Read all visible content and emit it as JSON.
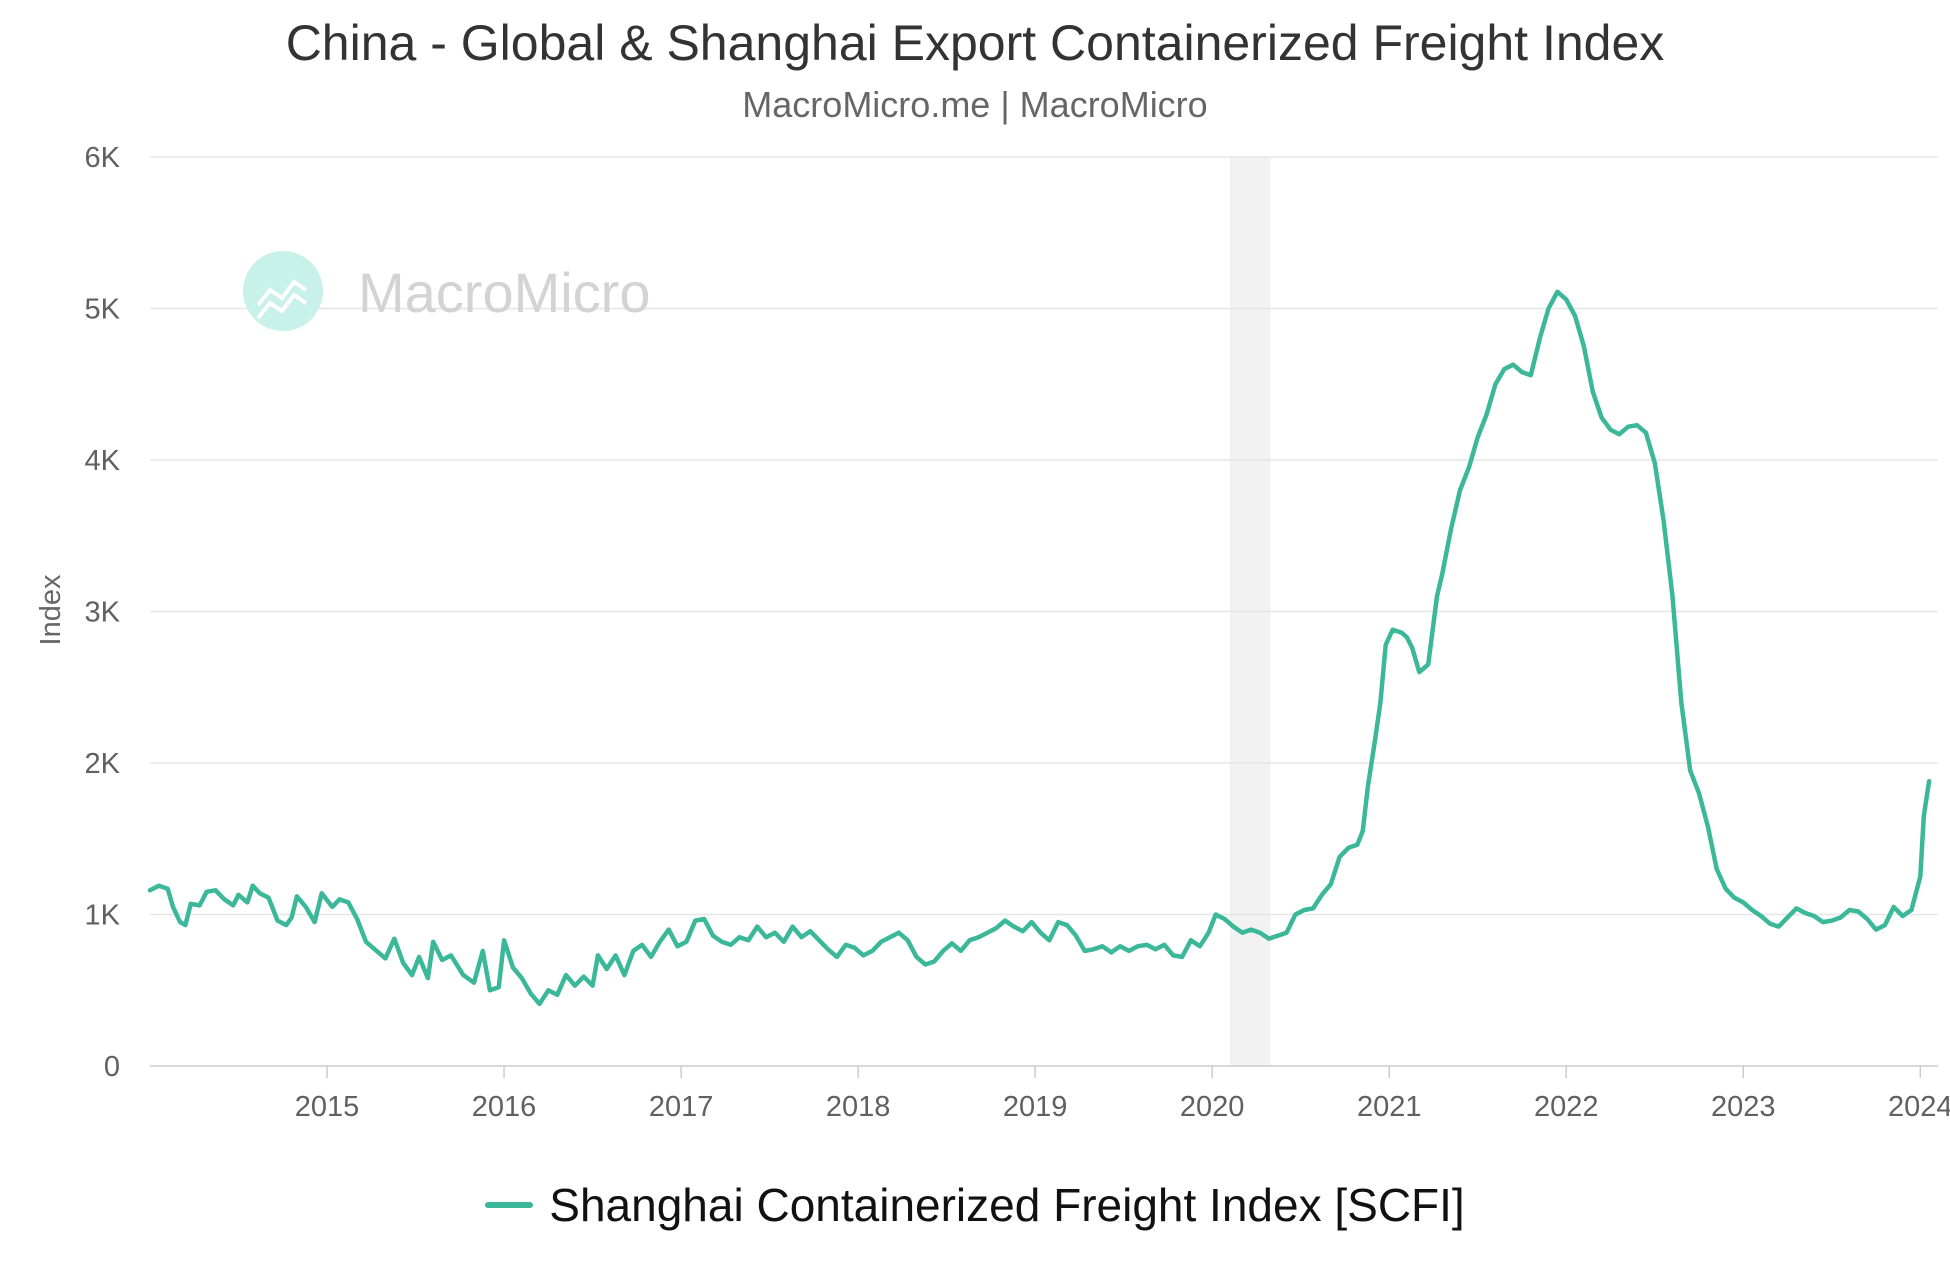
{
  "header": {
    "title": "China - Global & Shanghai Export Containerized Freight Index",
    "subtitle": "MacroMicro.me | MacroMicro"
  },
  "watermark": {
    "text": "MacroMicro",
    "icon": "chart-logo-icon",
    "color": "#c8f1e9"
  },
  "colors": {
    "series": "#3bb89a",
    "grid": "#e6e6e6",
    "shade": "#f2f2f2",
    "axis": "#cccccc"
  },
  "legend": {
    "label": "Shanghai Containerized Freight Index [SCFI]"
  },
  "chart_data": {
    "type": "line",
    "ylabel": "Index",
    "xlabel": "",
    "ylim": [
      0,
      6000
    ],
    "xlim": [
      2014.0,
      2024.1
    ],
    "y_ticks": [
      0,
      1000,
      2000,
      3000,
      4000,
      5000,
      6000
    ],
    "y_tick_labels": [
      "0",
      "1K",
      "2K",
      "3K",
      "4K",
      "5K",
      "6K"
    ],
    "x_ticks": [
      2015,
      2016,
      2017,
      2018,
      2019,
      2020,
      2021,
      2022,
      2023,
      2024
    ],
    "x_tick_labels": [
      "2015",
      "2016",
      "2017",
      "2018",
      "2019",
      "2020",
      "2021",
      "2022",
      "2023",
      "2024"
    ],
    "grid": "horizontal",
    "legend_position": "bottom-center",
    "shaded_periods": [
      [
        2020.1,
        2020.33
      ]
    ],
    "series": [
      {
        "name": "Shanghai Containerized Freight Index [SCFI]",
        "color": "#3bb89a",
        "points": [
          [
            2014.0,
            1160
          ],
          [
            2014.05,
            1190
          ],
          [
            2014.1,
            1170
          ],
          [
            2014.13,
            1050
          ],
          [
            2014.17,
            950
          ],
          [
            2014.2,
            930
          ],
          [
            2014.23,
            1070
          ],
          [
            2014.28,
            1060
          ],
          [
            2014.32,
            1150
          ],
          [
            2014.37,
            1160
          ],
          [
            2014.42,
            1100
          ],
          [
            2014.47,
            1060
          ],
          [
            2014.5,
            1130
          ],
          [
            2014.55,
            1080
          ],
          [
            2014.58,
            1190
          ],
          [
            2014.62,
            1140
          ],
          [
            2014.67,
            1110
          ],
          [
            2014.72,
            960
          ],
          [
            2014.77,
            930
          ],
          [
            2014.8,
            980
          ],
          [
            2014.83,
            1120
          ],
          [
            2014.88,
            1050
          ],
          [
            2014.93,
            950
          ],
          [
            2014.97,
            1140
          ],
          [
            2015.03,
            1050
          ],
          [
            2015.07,
            1100
          ],
          [
            2015.12,
            1080
          ],
          [
            2015.17,
            970
          ],
          [
            2015.22,
            820
          ],
          [
            2015.28,
            760
          ],
          [
            2015.33,
            710
          ],
          [
            2015.38,
            840
          ],
          [
            2015.43,
            680
          ],
          [
            2015.48,
            600
          ],
          [
            2015.52,
            720
          ],
          [
            2015.57,
            580
          ],
          [
            2015.6,
            820
          ],
          [
            2015.65,
            700
          ],
          [
            2015.7,
            730
          ],
          [
            2015.77,
            600
          ],
          [
            2015.83,
            550
          ],
          [
            2015.88,
            760
          ],
          [
            2015.92,
            500
          ],
          [
            2015.97,
            520
          ],
          [
            2016.0,
            830
          ],
          [
            2016.05,
            650
          ],
          [
            2016.1,
            580
          ],
          [
            2016.15,
            480
          ],
          [
            2016.2,
            410
          ],
          [
            2016.25,
            500
          ],
          [
            2016.3,
            470
          ],
          [
            2016.35,
            600
          ],
          [
            2016.4,
            530
          ],
          [
            2016.45,
            590
          ],
          [
            2016.5,
            530
          ],
          [
            2016.53,
            730
          ],
          [
            2016.58,
            640
          ],
          [
            2016.63,
            730
          ],
          [
            2016.68,
            600
          ],
          [
            2016.73,
            760
          ],
          [
            2016.78,
            800
          ],
          [
            2016.83,
            720
          ],
          [
            2016.88,
            820
          ],
          [
            2016.93,
            900
          ],
          [
            2016.98,
            790
          ],
          [
            2017.03,
            820
          ],
          [
            2017.08,
            960
          ],
          [
            2017.13,
            970
          ],
          [
            2017.18,
            860
          ],
          [
            2017.23,
            820
          ],
          [
            2017.28,
            800
          ],
          [
            2017.33,
            850
          ],
          [
            2017.38,
            830
          ],
          [
            2017.43,
            920
          ],
          [
            2017.48,
            850
          ],
          [
            2017.53,
            880
          ],
          [
            2017.58,
            820
          ],
          [
            2017.63,
            920
          ],
          [
            2017.68,
            850
          ],
          [
            2017.73,
            890
          ],
          [
            2017.78,
            830
          ],
          [
            2017.83,
            770
          ],
          [
            2017.88,
            720
          ],
          [
            2017.93,
            800
          ],
          [
            2017.98,
            780
          ],
          [
            2018.03,
            730
          ],
          [
            2018.08,
            760
          ],
          [
            2018.13,
            820
          ],
          [
            2018.18,
            850
          ],
          [
            2018.23,
            880
          ],
          [
            2018.28,
            830
          ],
          [
            2018.33,
            720
          ],
          [
            2018.38,
            670
          ],
          [
            2018.43,
            690
          ],
          [
            2018.48,
            760
          ],
          [
            2018.53,
            810
          ],
          [
            2018.58,
            760
          ],
          [
            2018.63,
            830
          ],
          [
            2018.68,
            850
          ],
          [
            2018.73,
            880
          ],
          [
            2018.78,
            910
          ],
          [
            2018.83,
            960
          ],
          [
            2018.88,
            920
          ],
          [
            2018.93,
            890
          ],
          [
            2018.98,
            950
          ],
          [
            2019.03,
            880
          ],
          [
            2019.08,
            830
          ],
          [
            2019.13,
            950
          ],
          [
            2019.18,
            930
          ],
          [
            2019.23,
            860
          ],
          [
            2019.28,
            760
          ],
          [
            2019.33,
            770
          ],
          [
            2019.38,
            790
          ],
          [
            2019.43,
            750
          ],
          [
            2019.48,
            790
          ],
          [
            2019.53,
            760
          ],
          [
            2019.58,
            790
          ],
          [
            2019.63,
            800
          ],
          [
            2019.68,
            770
          ],
          [
            2019.73,
            800
          ],
          [
            2019.78,
            730
          ],
          [
            2019.83,
            720
          ],
          [
            2019.88,
            830
          ],
          [
            2019.93,
            790
          ],
          [
            2019.98,
            880
          ],
          [
            2020.02,
            1000
          ],
          [
            2020.07,
            970
          ],
          [
            2020.12,
            920
          ],
          [
            2020.17,
            880
          ],
          [
            2020.22,
            900
          ],
          [
            2020.27,
            880
          ],
          [
            2020.32,
            840
          ],
          [
            2020.37,
            860
          ],
          [
            2020.42,
            880
          ],
          [
            2020.47,
            1000
          ],
          [
            2020.52,
            1030
          ],
          [
            2020.57,
            1040
          ],
          [
            2020.62,
            1130
          ],
          [
            2020.67,
            1200
          ],
          [
            2020.72,
            1380
          ],
          [
            2020.77,
            1440
          ],
          [
            2020.82,
            1460
          ],
          [
            2020.85,
            1550
          ],
          [
            2020.88,
            1850
          ],
          [
            2020.92,
            2150
          ],
          [
            2020.95,
            2400
          ],
          [
            2020.98,
            2780
          ],
          [
            2021.02,
            2880
          ],
          [
            2021.07,
            2860
          ],
          [
            2021.1,
            2830
          ],
          [
            2021.13,
            2760
          ],
          [
            2021.17,
            2600
          ],
          [
            2021.22,
            2650
          ],
          [
            2021.27,
            3100
          ],
          [
            2021.3,
            3250
          ],
          [
            2021.35,
            3550
          ],
          [
            2021.4,
            3800
          ],
          [
            2021.45,
            3950
          ],
          [
            2021.5,
            4150
          ],
          [
            2021.55,
            4300
          ],
          [
            2021.6,
            4500
          ],
          [
            2021.65,
            4600
          ],
          [
            2021.7,
            4630
          ],
          [
            2021.75,
            4580
          ],
          [
            2021.8,
            4560
          ],
          [
            2021.85,
            4800
          ],
          [
            2021.9,
            5000
          ],
          [
            2021.95,
            5110
          ],
          [
            2022.0,
            5060
          ],
          [
            2022.05,
            4950
          ],
          [
            2022.1,
            4750
          ],
          [
            2022.15,
            4450
          ],
          [
            2022.2,
            4280
          ],
          [
            2022.25,
            4200
          ],
          [
            2022.3,
            4170
          ],
          [
            2022.35,
            4220
          ],
          [
            2022.4,
            4230
          ],
          [
            2022.45,
            4180
          ],
          [
            2022.5,
            3980
          ],
          [
            2022.55,
            3600
          ],
          [
            2022.6,
            3100
          ],
          [
            2022.65,
            2400
          ],
          [
            2022.7,
            1950
          ],
          [
            2022.75,
            1800
          ],
          [
            2022.8,
            1580
          ],
          [
            2022.85,
            1300
          ],
          [
            2022.9,
            1170
          ],
          [
            2022.95,
            1110
          ],
          [
            2023.0,
            1080
          ],
          [
            2023.05,
            1030
          ],
          [
            2023.1,
            990
          ],
          [
            2023.15,
            940
          ],
          [
            2023.2,
            920
          ],
          [
            2023.25,
            980
          ],
          [
            2023.3,
            1040
          ],
          [
            2023.35,
            1010
          ],
          [
            2023.4,
            990
          ],
          [
            2023.45,
            950
          ],
          [
            2023.5,
            960
          ],
          [
            2023.55,
            980
          ],
          [
            2023.6,
            1030
          ],
          [
            2023.65,
            1020
          ],
          [
            2023.7,
            970
          ],
          [
            2023.75,
            900
          ],
          [
            2023.8,
            930
          ],
          [
            2023.85,
            1050
          ],
          [
            2023.9,
            990
          ],
          [
            2023.95,
            1030
          ],
          [
            2024.0,
            1250
          ],
          [
            2024.02,
            1650
          ],
          [
            2024.05,
            1880
          ]
        ]
      }
    ]
  }
}
